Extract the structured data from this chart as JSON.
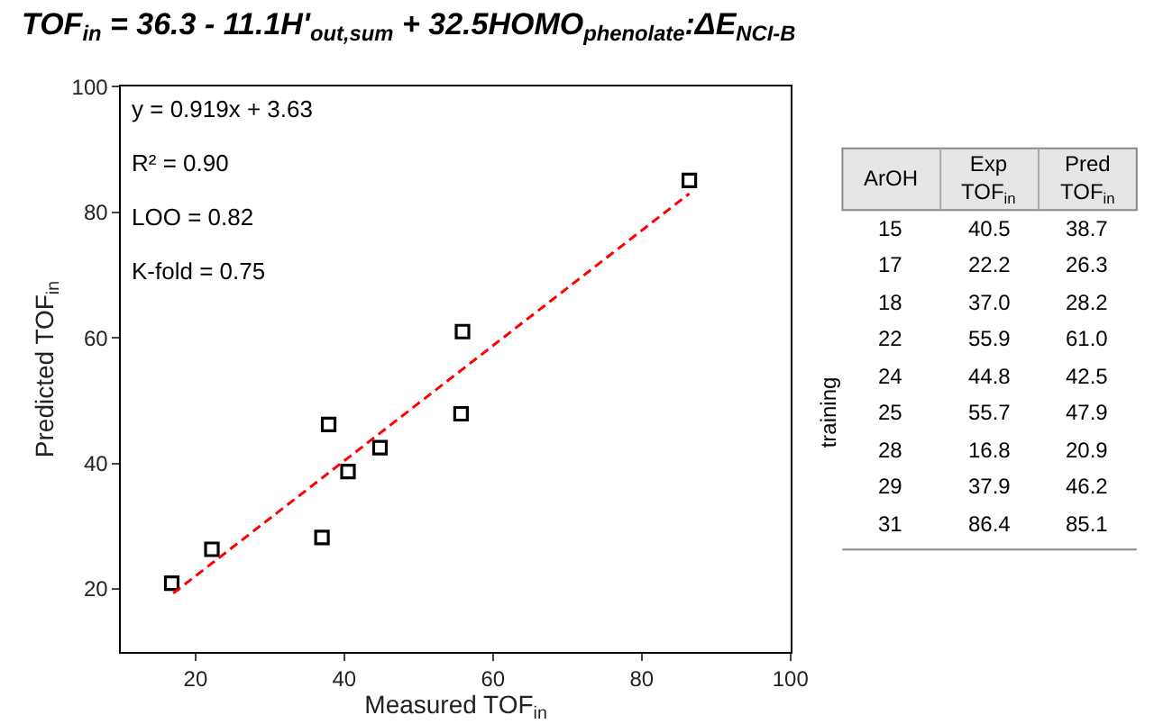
{
  "chart_data": [
    {
      "type": "scatter",
      "title": "TOF$_{in}$ = 36.3 - 11.1H'$_{out,sum}$ + 32.5HOMO$_{phenolate}$:ΔE$_{NCI-B}$",
      "xlabel": "Measured TOF$_{in}$",
      "ylabel": "Predicted TOF$_{in}$",
      "xlim": [
        10,
        100
      ],
      "xticks": [
        20,
        40,
        60,
        80,
        100
      ],
      "ylim": [
        10,
        100
      ],
      "yticks": [
        20,
        40,
        60,
        80,
        100
      ],
      "annotations": [
        "y = 0.919x + 3.63",
        "R² = 0.90",
        "LOO = 0.82",
        "K-fold = 0.75"
      ],
      "series": [
        {
          "type": "scatter",
          "marker": "square",
          "color": "#000000",
          "x": [
            40.5,
            22.2,
            37.0,
            55.9,
            44.8,
            55.7,
            16.8,
            37.9,
            86.4
          ],
          "values": [
            38.7,
            26.3,
            28.2,
            61.0,
            42.5,
            47.9,
            20.9,
            46.2,
            85.1
          ]
        },
        {
          "type": "line",
          "line_style": "dashed",
          "color": "#ff0000",
          "x": [
            17,
            86.4
          ],
          "values": [
            19.3,
            83.0
          ]
        }
      ]
    },
    {
      "type": "other",
      "xlabel": "ArOH",
      "ylabel": "training",
      "categories": [
        "15",
        "17",
        "18",
        "22",
        "24",
        "25",
        "28",
        "29",
        "31"
      ],
      "series": [
        {
          "name": "Exp TOF$_{in}$",
          "values": [
            40.5,
            22.2,
            37.0,
            55.9,
            44.8,
            55.7,
            16.8,
            37.9,
            86.4
          ],
          "value_labels": [
            "40.5",
            "22.2",
            "37.0",
            "55.9",
            "44.8",
            "55.7",
            "16.8",
            "37.9",
            "86.4"
          ]
        },
        {
          "name": "Pred TOF$_{in}$",
          "values": [
            38.7,
            26.3,
            28.2,
            61.0,
            42.5,
            47.9,
            20.9,
            46.2,
            85.1
          ],
          "value_labels": [
            "38.7",
            "26.3",
            "28.2",
            "61.0",
            "42.5",
            "47.9",
            "20.9",
            "46.2",
            "85.1"
          ]
        }
      ]
    }
  ]
}
